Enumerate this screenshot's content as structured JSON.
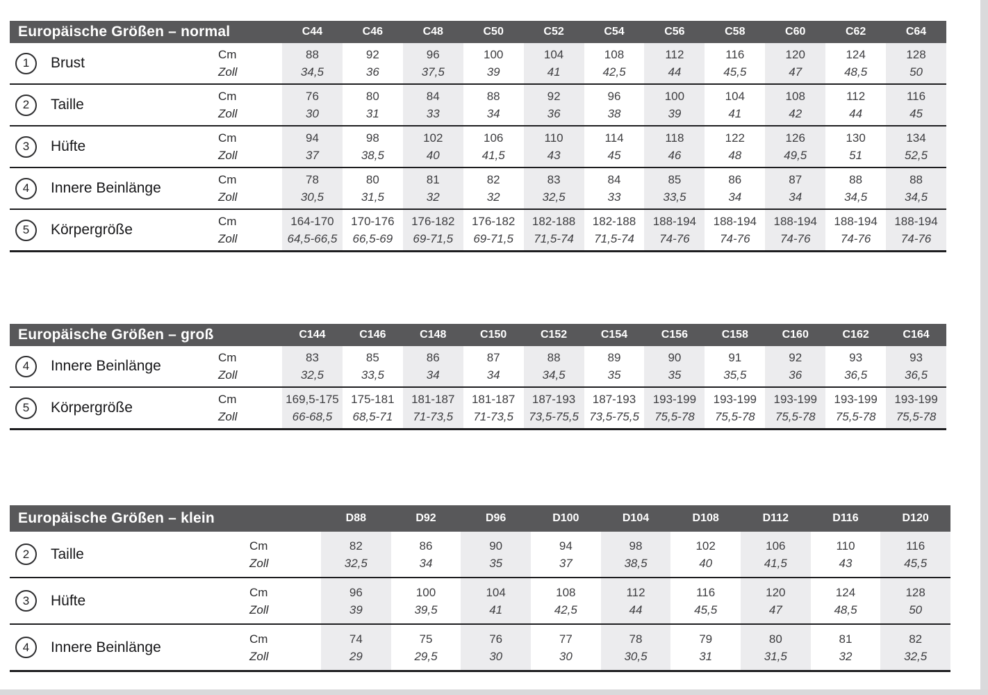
{
  "units": {
    "cm": "Cm",
    "zoll": "Zoll"
  },
  "colors": {
    "header_bg": "#58585a",
    "header_text": "#ffffff",
    "stripe": "#ececee",
    "rule": "#1d1d1f",
    "body_text": "#3c3c3f"
  },
  "tables": [
    {
      "key": "normal",
      "title": "Europäische Größen – normal",
      "columns": [
        "C44",
        "C46",
        "C48",
        "C50",
        "C52",
        "C54",
        "C56",
        "C58",
        "C60",
        "C62",
        "C64"
      ],
      "rows": [
        {
          "num": "1",
          "label": "Brust",
          "cm": [
            "88",
            "92",
            "96",
            "100",
            "104",
            "108",
            "112",
            "116",
            "120",
            "124",
            "128"
          ],
          "zoll": [
            "34,5",
            "36",
            "37,5",
            "39",
            "41",
            "42,5",
            "44",
            "45,5",
            "47",
            "48,5",
            "50"
          ]
        },
        {
          "num": "2",
          "label": "Taille",
          "cm": [
            "76",
            "80",
            "84",
            "88",
            "92",
            "96",
            "100",
            "104",
            "108",
            "112",
            "116"
          ],
          "zoll": [
            "30",
            "31",
            "33",
            "34",
            "36",
            "38",
            "39",
            "41",
            "42",
            "44",
            "45"
          ]
        },
        {
          "num": "3",
          "label": "Hüfte",
          "cm": [
            "94",
            "98",
            "102",
            "106",
            "110",
            "114",
            "118",
            "122",
            "126",
            "130",
            "134"
          ],
          "zoll": [
            "37",
            "38,5",
            "40",
            "41,5",
            "43",
            "45",
            "46",
            "48",
            "49,5",
            "51",
            "52,5"
          ]
        },
        {
          "num": "4",
          "label": "Innere Beinlänge",
          "cm": [
            "78",
            "80",
            "81",
            "82",
            "83",
            "84",
            "85",
            "86",
            "87",
            "88",
            "88"
          ],
          "zoll": [
            "30,5",
            "31,5",
            "32",
            "32",
            "32,5",
            "33",
            "33,5",
            "34",
            "34",
            "34,5",
            "34,5"
          ]
        },
        {
          "num": "5",
          "label": "Körpergröße",
          "cm": [
            "164-170",
            "170-176",
            "176-182",
            "176-182",
            "182-188",
            "182-188",
            "188-194",
            "188-194",
            "188-194",
            "188-194",
            "188-194"
          ],
          "zoll": [
            "64,5-66,5",
            "66,5-69",
            "69-71,5",
            "69-71,5",
            "71,5-74",
            "71,5-74",
            "74-76",
            "74-76",
            "74-76",
            "74-76",
            "74-76"
          ]
        }
      ]
    },
    {
      "key": "gross",
      "title": "Europäische Größen – groß",
      "columns": [
        "C144",
        "C146",
        "C148",
        "C150",
        "C152",
        "C154",
        "C156",
        "C158",
        "C160",
        "C162",
        "C164"
      ],
      "rows": [
        {
          "num": "4",
          "label": "Innere Beinlänge",
          "cm": [
            "83",
            "85",
            "86",
            "87",
            "88",
            "89",
            "90",
            "91",
            "92",
            "93",
            "93"
          ],
          "zoll": [
            "32,5",
            "33,5",
            "34",
            "34",
            "34,5",
            "35",
            "35",
            "35,5",
            "36",
            "36,5",
            "36,5"
          ]
        },
        {
          "num": "5",
          "label": "Körpergröße",
          "cm": [
            "169,5-175",
            "175-181",
            "181-187",
            "181-187",
            "187-193",
            "187-193",
            "193-199",
            "193-199",
            "193-199",
            "193-199",
            "193-199"
          ],
          "zoll": [
            "66-68,5",
            "68,5-71",
            "71-73,5",
            "71-73,5",
            "73,5-75,5",
            "73,5-75,5",
            "75,5-78",
            "75,5-78",
            "75,5-78",
            "75,5-78",
            "75,5-78"
          ]
        }
      ]
    },
    {
      "key": "klein",
      "title": "Europäische Größen – klein",
      "columns": [
        "D88",
        "D92",
        "D96",
        "D100",
        "D104",
        "D108",
        "D112",
        "D116",
        "D120"
      ],
      "rows": [
        {
          "num": "2",
          "label": "Taille",
          "cm": [
            "82",
            "86",
            "90",
            "94",
            "98",
            "102",
            "106",
            "110",
            "116"
          ],
          "zoll": [
            "32,5",
            "34",
            "35",
            "37",
            "38,5",
            "40",
            "41,5",
            "43",
            "45,5"
          ]
        },
        {
          "num": "3",
          "label": "Hüfte",
          "cm": [
            "96",
            "100",
            "104",
            "108",
            "112",
            "116",
            "120",
            "124",
            "128"
          ],
          "zoll": [
            "39",
            "39,5",
            "41",
            "42,5",
            "44",
            "45,5",
            "47",
            "48,5",
            "50"
          ]
        },
        {
          "num": "4",
          "label": "Innere Beinlänge",
          "cm": [
            "74",
            "75",
            "76",
            "77",
            "78",
            "79",
            "80",
            "81",
            "82"
          ],
          "zoll": [
            "29",
            "29,5",
            "30",
            "30",
            "30,5",
            "31",
            "31,5",
            "32",
            "32,5"
          ]
        }
      ]
    }
  ]
}
